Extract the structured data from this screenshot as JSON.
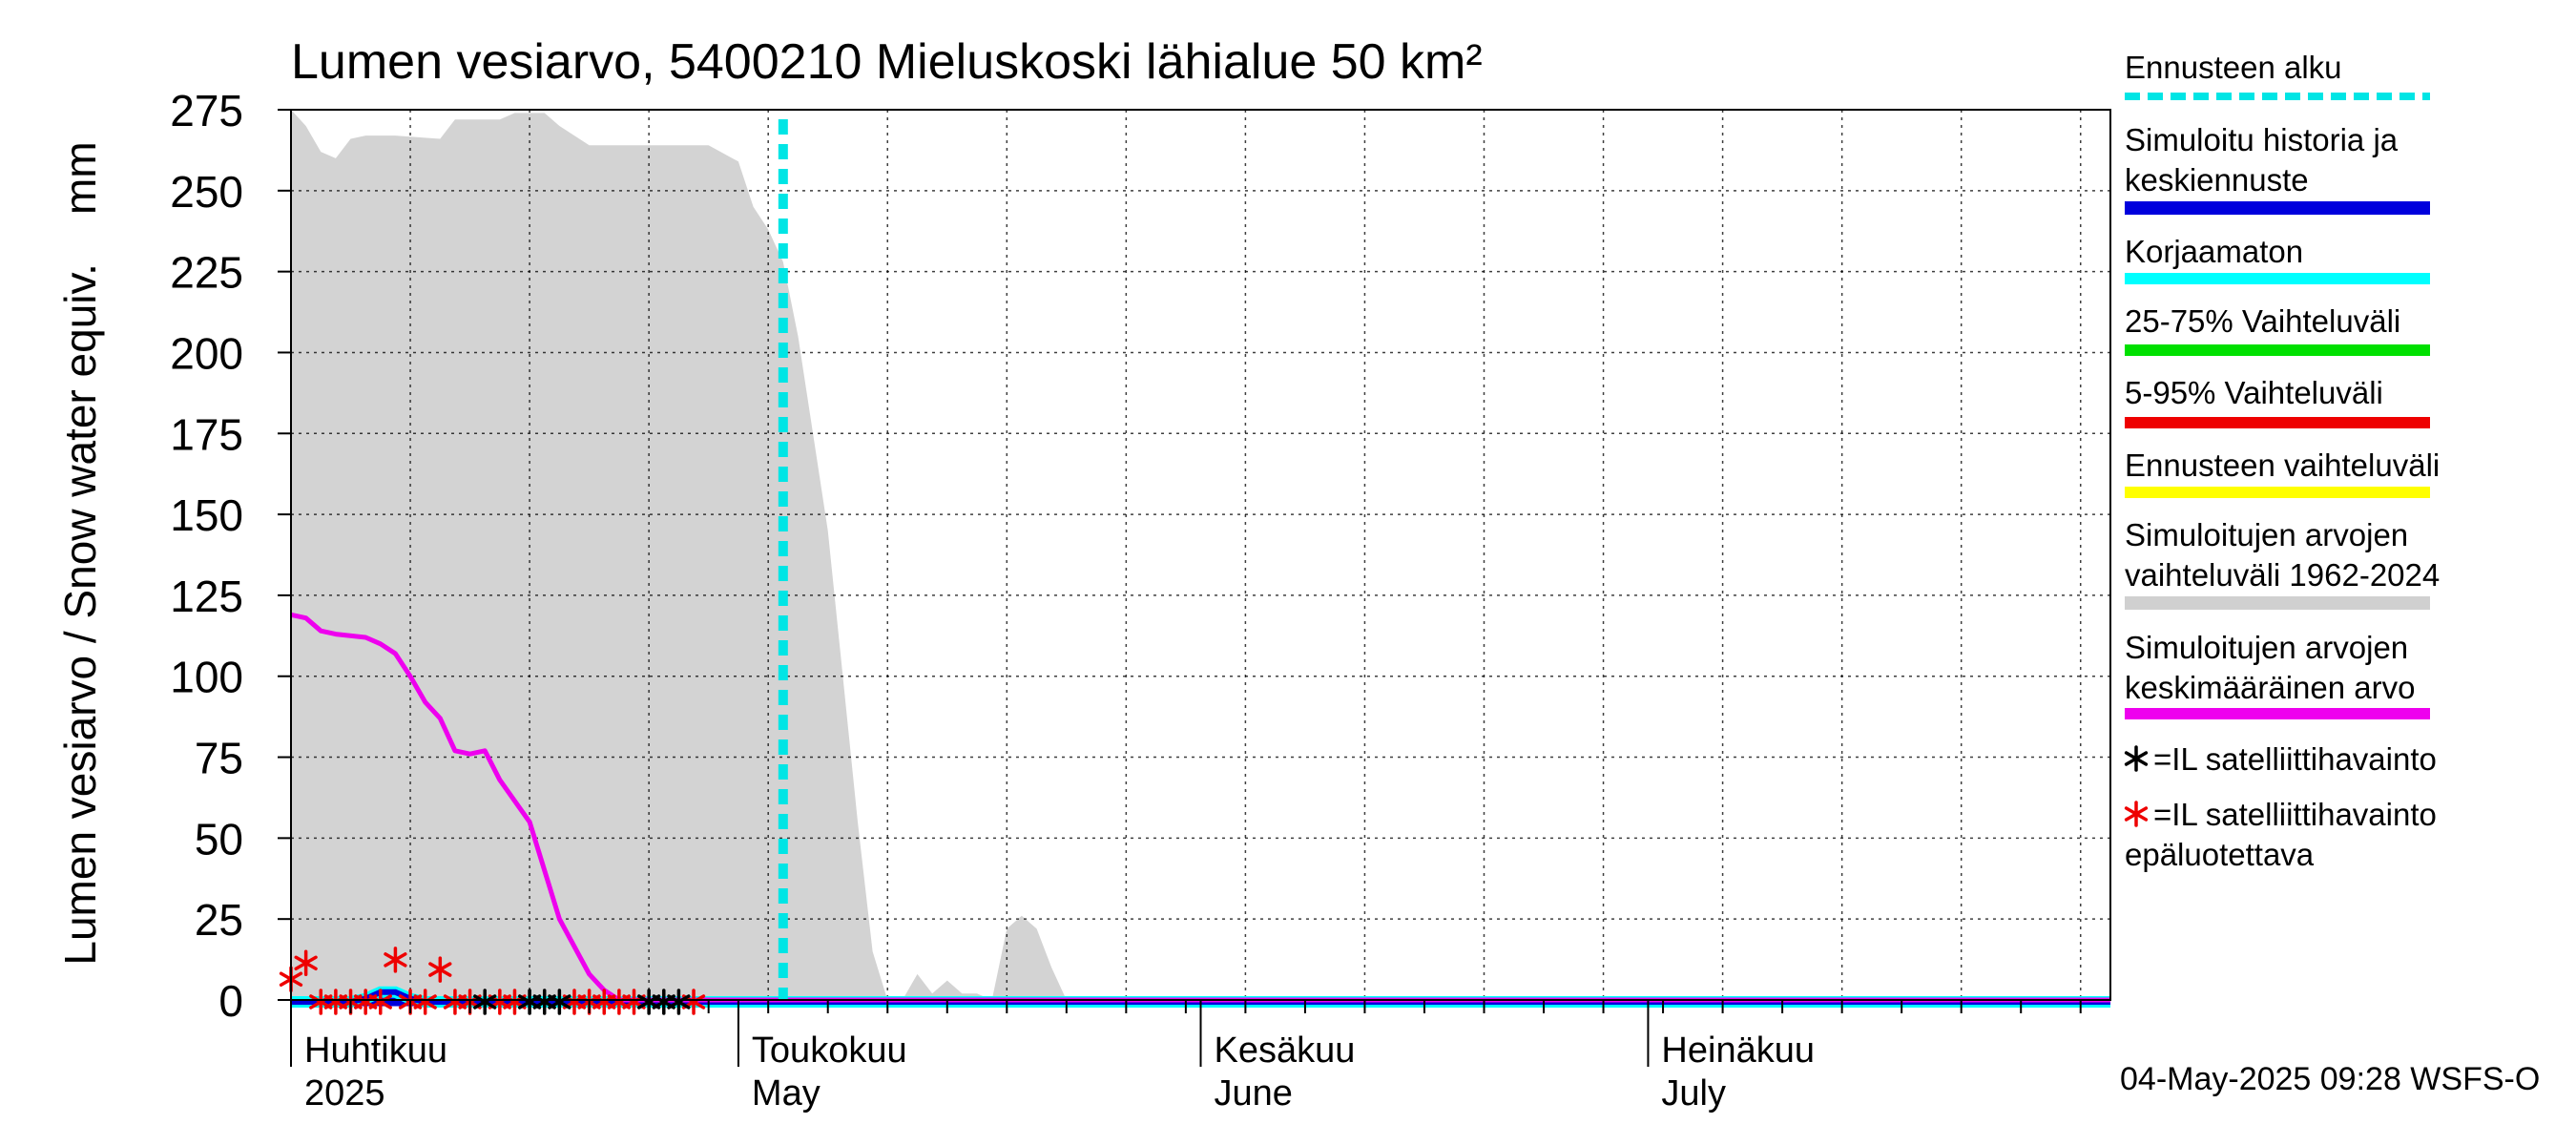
{
  "chart_data": {
    "type": "area",
    "title": "Lumen vesiarvo, 5400210 Mieluskoski lähialue 50 km²",
    "ylabel": "Lumen vesiarvo / Snow water equiv.    mm",
    "ylim": [
      0,
      275
    ],
    "yticks": [
      0,
      25,
      50,
      75,
      100,
      125,
      150,
      175,
      200,
      225,
      250,
      275
    ],
    "xlim_days": [
      0,
      122
    ],
    "month_labels": [
      {
        "fi": "Huhtikuu",
        "en": "2025",
        "day": 0
      },
      {
        "fi": "Toukokuu",
        "en": "May",
        "day": 30
      },
      {
        "fi": "Kesäkuu",
        "en": "June",
        "day": 61
      },
      {
        "fi": "Heinäkuu",
        "en": "July",
        "day": 91
      }
    ],
    "forecast_start_day": 33,
    "historical_range_max": {
      "x": [
        0,
        1,
        2,
        3,
        4,
        5,
        7,
        10,
        11,
        12,
        14,
        15,
        17,
        18,
        20,
        21,
        22,
        24,
        26,
        28,
        30,
        31,
        32,
        33,
        34,
        35,
        36,
        37,
        38,
        39,
        40,
        41,
        42,
        43,
        44,
        45,
        46,
        47,
        48,
        49,
        50,
        51,
        52,
        53,
        54,
        55,
        56,
        57,
        58,
        59,
        60
      ],
      "y": [
        275,
        270,
        262,
        260,
        266,
        267,
        267,
        266,
        272,
        272,
        272,
        274,
        274,
        270,
        264,
        264,
        264,
        264,
        264,
        264,
        259,
        245,
        238,
        228,
        205,
        175,
        145,
        100,
        55,
        15,
        0,
        0,
        8,
        2,
        6,
        2,
        2,
        0,
        22,
        26,
        22,
        10,
        0,
        0,
        0,
        0,
        0,
        0,
        0,
        0,
        0
      ]
    },
    "mean_series": {
      "name": "Simuloitujen arvojen keskimääräinen arvo",
      "x": [
        0,
        1,
        2,
        3,
        5,
        6,
        7,
        8,
        9,
        10,
        11,
        12,
        13,
        14,
        16,
        18,
        20,
        21,
        22,
        23,
        24,
        26,
        30,
        40,
        60,
        122
      ],
      "y": [
        119,
        118,
        114,
        113,
        112,
        110,
        107,
        100,
        92,
        87,
        77,
        76,
        77,
        68,
        55,
        25,
        8,
        3,
        0,
        0,
        0,
        0,
        0,
        0,
        0,
        0
      ]
    },
    "simulated_series": {
      "name": "Simuloitu historia ja keskiennuste",
      "x": [
        0,
        4,
        5,
        6,
        7,
        8,
        9,
        10,
        12,
        122
      ],
      "y": [
        0,
        0,
        1,
        3,
        3,
        1,
        0,
        0,
        0,
        0
      ]
    },
    "satellite_obs": {
      "x": [
        13,
        16,
        17,
        18,
        24,
        25,
        26
      ],
      "y": [
        0,
        0,
        0,
        0,
        0,
        0,
        0
      ]
    },
    "satellite_obs_unreliable": {
      "x": [
        0,
        1,
        2,
        3,
        4,
        5,
        6,
        7,
        8,
        9,
        10,
        11,
        12,
        14,
        15,
        19,
        20,
        21,
        22,
        23,
        27
      ],
      "y": [
        7,
        12,
        0,
        0,
        0,
        0,
        0,
        13,
        0,
        0,
        10,
        0,
        0,
        0,
        0,
        0,
        0,
        0,
        0,
        0,
        0
      ]
    },
    "legend": [
      {
        "label": "Ennusteen alku",
        "color": "#00e5e5",
        "style": "dashed"
      },
      {
        "label": "Simuloitu historia ja keskiennuste",
        "color": "#0000dd",
        "style": "solid"
      },
      {
        "label": "Korjaamaton",
        "color": "#00ffff",
        "style": "solid"
      },
      {
        "label": "25-75% Vaihteluväli",
        "color": "#00e000",
        "style": "solid"
      },
      {
        "label": "5-95% Vaihteluväli",
        "color": "#ee0000",
        "style": "solid"
      },
      {
        "label": "Ennusteen vaihteluväli",
        "color": "#ffff00",
        "style": "solid"
      },
      {
        "label": "Simuloitujen arvojen vaihteluväli 1962-2024",
        "color": "#d0d0d0",
        "style": "solid"
      },
      {
        "label": "Simuloitujen arvojen keskimääräinen arvo",
        "color": "#ee00ee",
        "style": "solid"
      },
      {
        "label": "=IL satelliittihavainto",
        "color": "#000000",
        "style": "marker"
      },
      {
        "label": "=IL satelliittihavainto epäluotettava",
        "color": "#ee0000",
        "style": "marker"
      }
    ],
    "footer": "04-May-2025 09:28 WSFS-O"
  },
  "colors": {
    "range_fill": "#d3d3d3",
    "mean": "#ee00ee",
    "sim": "#0000dd",
    "sim_outline": "#00ffff",
    "baseline_purple": "#8800cc",
    "forecast": "#00e5e5",
    "obs": "#000000",
    "obs_unreliable": "#ee0000"
  }
}
